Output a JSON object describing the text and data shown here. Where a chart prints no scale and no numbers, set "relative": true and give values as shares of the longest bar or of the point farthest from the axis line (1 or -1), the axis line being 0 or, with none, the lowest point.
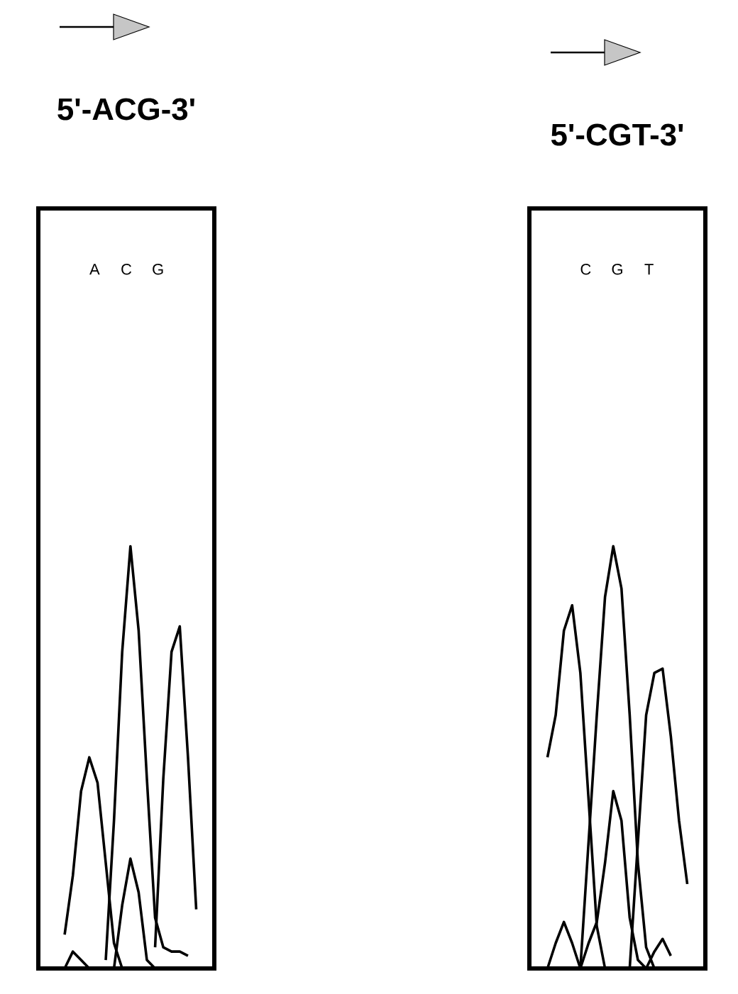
{
  "chart_data": [
    {
      "type": "line",
      "title": "5'-ACG-3'",
      "relative": true,
      "tick_labels": false,
      "categories": [
        null,
        null,
        null,
        null,
        null,
        null,
        null,
        null,
        null,
        null,
        null,
        null,
        null,
        null,
        null,
        null,
        null,
        null
      ],
      "annotations": [
        "A",
        "C",
        "G"
      ],
      "series": [
        {
          "color": "#000000",
          "values": [
            null,
            0.08,
            0.22,
            0.42,
            0.5,
            0.44,
            0.25,
            0.06,
            0.0,
            null,
            null,
            null,
            null,
            null,
            null,
            null,
            null,
            null
          ]
        },
        {
          "color": "#000000",
          "values": [
            null,
            null,
            null,
            null,
            null,
            null,
            0.02,
            0.35,
            0.75,
            1.0,
            0.8,
            0.45,
            0.12,
            0.05,
            0.04,
            0.04,
            0.03,
            null
          ]
        },
        {
          "color": "#000000",
          "values": [
            null,
            null,
            null,
            null,
            null,
            null,
            null,
            null,
            null,
            null,
            null,
            null,
            0.05,
            0.45,
            0.75,
            0.81,
            0.5,
            0.14
          ]
        },
        {
          "color": "#000000",
          "values": [
            null,
            0.0,
            0.04,
            0.02,
            0.0,
            0.0,
            0.0,
            0.0,
            0.15,
            0.26,
            0.18,
            0.02,
            0.0,
            0.0,
            0.0,
            null,
            null,
            null
          ]
        }
      ]
    },
    {
      "type": "line",
      "title": "5'-CGT-3'",
      "relative": true,
      "tick_labels": false,
      "categories": [
        null,
        null,
        null,
        null,
        null,
        null,
        null,
        null,
        null,
        null,
        null,
        null,
        null,
        null,
        null,
        null,
        null,
        null
      ],
      "annotations": [
        "C",
        "G",
        "T"
      ],
      "series": [
        {
          "color": "#000000",
          "values": [
            0.5,
            0.6,
            0.8,
            0.86,
            0.7,
            0.4,
            0.1,
            0.0,
            null,
            null,
            null,
            null,
            null,
            null,
            null,
            null,
            null,
            null
          ]
        },
        {
          "color": "#000000",
          "values": [
            null,
            null,
            null,
            null,
            0.0,
            0.3,
            0.6,
            0.88,
            1.0,
            0.9,
            0.6,
            0.25,
            0.05,
            0.0,
            null,
            null,
            null,
            null
          ]
        },
        {
          "color": "#000000",
          "values": [
            null,
            null,
            null,
            null,
            null,
            null,
            null,
            null,
            null,
            null,
            0.0,
            0.3,
            0.6,
            0.7,
            0.71,
            0.55,
            0.35,
            0.2
          ]
        },
        {
          "color": "#000000",
          "values": [
            0.0,
            0.06,
            0.11,
            0.06,
            0.0,
            0.06,
            0.11,
            0.25,
            0.42,
            0.35,
            0.12,
            0.02,
            0.0,
            0.04,
            0.07,
            0.03,
            null,
            null
          ]
        }
      ]
    }
  ]
}
